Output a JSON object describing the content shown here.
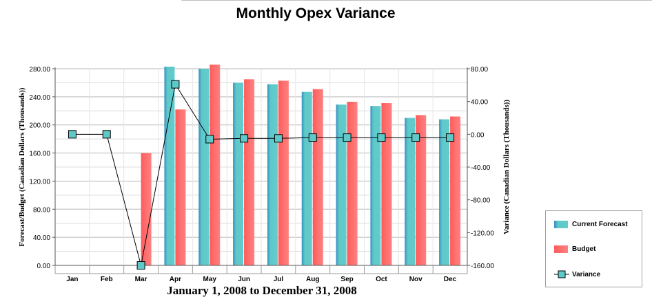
{
  "chart_data": {
    "type": "bar",
    "title": "Monthly Opex Variance",
    "subtitle": "January 1, 2008 to December 31, 2008",
    "ylabel": "Forecast/Budget (Canadian Dollars (Thousands))",
    "y2label": "Variance (Canadian Dollars (Thousands))",
    "categories": [
      "Jan",
      "Feb",
      "Mar",
      "Apr",
      "May",
      "Jun",
      "Jul",
      "Aug",
      "Sep",
      "Oct",
      "Nov",
      "Dec"
    ],
    "ylim": [
      0,
      280
    ],
    "yticks": [
      "0.00",
      "40.00",
      "80.00",
      "120.00",
      "160.00",
      "200.00",
      "240.00",
      "280.00"
    ],
    "y2lim": [
      -160,
      80
    ],
    "y2ticks": [
      "-160.00",
      "-120.00",
      "-80.00",
      "-40.00",
      "0.00",
      "40.00",
      "80.00"
    ],
    "grid": true,
    "legend_position": "right",
    "series": [
      {
        "name": "Current Forecast",
        "kind": "bar",
        "axis": "left",
        "color": "#5fc9c9",
        "values": [
          0,
          0,
          0,
          283,
          280,
          260,
          258,
          247,
          229,
          227,
          210,
          208
        ]
      },
      {
        "name": "Budget",
        "kind": "bar",
        "axis": "left",
        "color": "#ff6a6a",
        "values": [
          0,
          0,
          160,
          222,
          286,
          265,
          263,
          251,
          233,
          231,
          214,
          212
        ]
      },
      {
        "name": "Variance",
        "kind": "line",
        "axis": "right",
        "color": "#000000",
        "marker_color": "#5fc9c9",
        "values": [
          0,
          0,
          -160,
          61,
          -6,
          -5,
          -5,
          -4,
          -4,
          -4,
          -4,
          -4
        ]
      }
    ]
  }
}
